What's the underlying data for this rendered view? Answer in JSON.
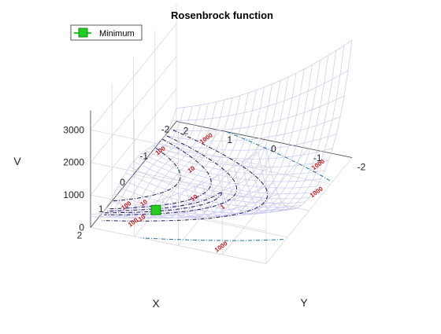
{
  "chart_data": {
    "type": "surface3d",
    "title": "Rosenbrock function",
    "xlabel": "X",
    "ylabel": "Y",
    "zlabel": "V",
    "xlim": [
      -2,
      2
    ],
    "ylim": [
      -2,
      2
    ],
    "zlim": [
      0,
      3600
    ],
    "x_ticks": [
      "2",
      "1",
      "0",
      "-1",
      "-2"
    ],
    "y_ticks": [
      "-2",
      "-1",
      "0",
      "1",
      "2"
    ],
    "z_ticks": [
      "0",
      "1000",
      "2000",
      "3000"
    ],
    "grid": true,
    "legend": {
      "placement": "top-left",
      "entries": [
        {
          "label": "Minimum",
          "color": "#22cc22",
          "marker": "square"
        }
      ]
    },
    "minimum_point": {
      "x": 1,
      "y": 1,
      "z": 0
    },
    "contour_levels": [
      1,
      10,
      100,
      1000
    ],
    "contour_labels": [
      "1000",
      "100",
      "10",
      "1",
      "100",
      "10",
      "10",
      "1000",
      "1000",
      "1000",
      "100",
      "10"
    ],
    "surface_color": "#c8c8f0",
    "colors": {
      "contour_dark": "#1a1a5a",
      "contour_mid": "#1a70b0",
      "label_red": "#d01818",
      "minimum_green": "#22cc22"
    }
  }
}
